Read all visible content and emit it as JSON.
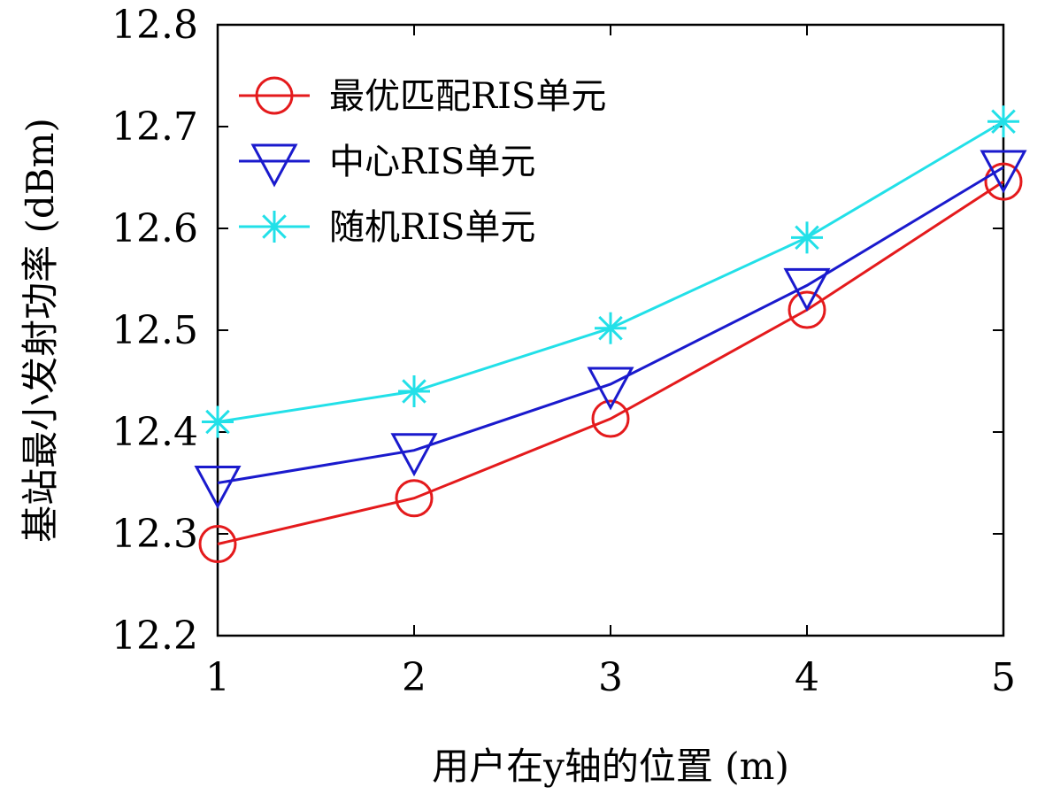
{
  "chart_data": {
    "type": "line",
    "xlabel": "用户在y轴的位置 (m)",
    "ylabel": "基站最小发射功率 (dBm)",
    "x": [
      1,
      2,
      3,
      4,
      5
    ],
    "xlim": [
      1,
      5
    ],
    "ylim": [
      12.2,
      12.8
    ],
    "xticks": [
      "1",
      "2",
      "3",
      "4",
      "5"
    ],
    "yticks": [
      "12.2",
      "12.3",
      "12.4",
      "12.5",
      "12.6",
      "12.7",
      "12.8"
    ],
    "grid": false,
    "legend_position": "top-left",
    "series": [
      {
        "name": "最优匹配RIS单元",
        "color": "#e41a1c",
        "marker": "circle",
        "values": [
          12.29,
          12.335,
          12.413,
          12.52,
          12.646
        ]
      },
      {
        "name": "中心RIS单元",
        "color": "#1a1acd",
        "marker": "triangle-down",
        "values": [
          12.35,
          12.382,
          12.447,
          12.544,
          12.66
        ]
      },
      {
        "name": "随机RIS单元",
        "color": "#22e0e8",
        "marker": "asterisk",
        "values": [
          12.41,
          12.44,
          12.502,
          12.591,
          12.705
        ]
      }
    ]
  }
}
